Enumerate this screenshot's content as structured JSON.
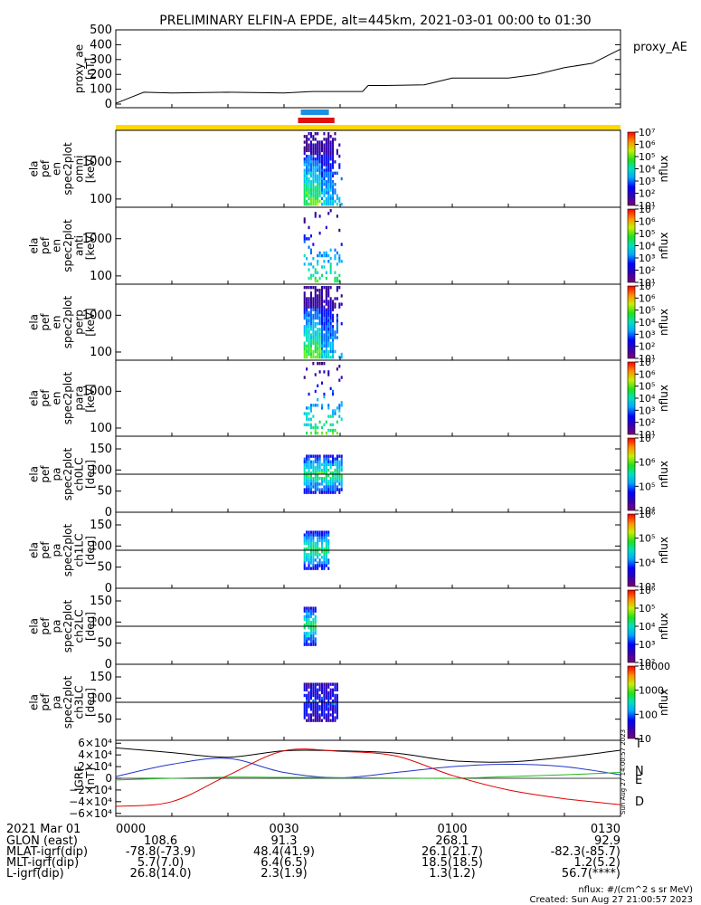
{
  "title": "PRELIMINARY ELFIN-A EPDE, alt=445km, 2021-03-01 00:00 to 01:30",
  "colors": {
    "bar_blue": "#1a8fe3",
    "bar_red": "#e01010",
    "bar_yellow": "#ffd800",
    "grf_total": "#000000",
    "grf_n": "#1f35c9",
    "grf_e": "#1fb81f",
    "grf_d": "#e00000"
  },
  "chart_data": [
    {
      "type": "line",
      "id": "proxy_ae",
      "ylabel": [
        "proxy_ae",
        "[nT]"
      ],
      "ylim": [
        0,
        500
      ],
      "yticks": [
        "0",
        "100",
        "200",
        "300",
        "400",
        "500"
      ],
      "legend": "proxy_AE",
      "x_minutes": [
        0,
        3,
        5,
        10,
        20,
        30,
        35,
        40,
        44,
        45,
        48,
        55,
        60,
        65,
        70,
        75,
        80,
        85,
        90
      ],
      "values": [
        5,
        50,
        80,
        75,
        80,
        75,
        85,
        85,
        85,
        125,
        125,
        130,
        175,
        175,
        175,
        200,
        245,
        275,
        370
      ]
    },
    {
      "type": "heatmap",
      "id": "omni",
      "ylabel": [
        "ela",
        "pef",
        "en",
        "spec2plot",
        "omni",
        "[keV]"
      ],
      "ylim": [
        60,
        7000
      ],
      "yscale": "log",
      "yticks": [
        "100",
        "1000"
      ],
      "colorbar": {
        "label": "nflux",
        "ticks": [
          "10¹",
          "10²",
          "10³",
          "10⁴",
          "10⁵",
          "10⁶",
          "10⁷"
        ]
      }
    },
    {
      "type": "heatmap",
      "id": "anti",
      "ylabel": [
        "ela",
        "pef",
        "en",
        "spec2plot",
        "anti",
        "[keV]"
      ],
      "ylim": [
        60,
        7000
      ],
      "yscale": "log",
      "yticks": [
        "100",
        "1000"
      ],
      "colorbar": {
        "label": "nflux",
        "ticks": [
          "10¹",
          "10²",
          "10³",
          "10⁴",
          "10⁵",
          "10⁶",
          "10⁷"
        ]
      }
    },
    {
      "type": "heatmap",
      "id": "perp",
      "ylabel": [
        "ela",
        "pef",
        "en",
        "spec2plot",
        "perp",
        "[keV]"
      ],
      "ylim": [
        60,
        7000
      ],
      "yscale": "log",
      "yticks": [
        "100",
        "1000"
      ],
      "colorbar": {
        "label": "nflux",
        "ticks": [
          "10¹",
          "10²",
          "10³",
          "10⁴",
          "10⁵",
          "10⁶",
          "10⁷"
        ]
      }
    },
    {
      "type": "heatmap",
      "id": "para",
      "ylabel": [
        "ela",
        "pef",
        "en",
        "spec2plot",
        "para",
        "[keV]"
      ],
      "ylim": [
        60,
        7000
      ],
      "yscale": "log",
      "yticks": [
        "100",
        "1000"
      ],
      "colorbar": {
        "label": "nflux",
        "ticks": [
          "10¹",
          "10²",
          "10³",
          "10⁴",
          "10⁵",
          "10⁶",
          "10⁷"
        ]
      }
    },
    {
      "type": "heatmap",
      "id": "ch0LC",
      "ylabel": [
        "ela",
        "pef",
        "pa",
        "spec2plot",
        "ch0LC",
        "[deg]"
      ],
      "ylim": [
        0,
        180
      ],
      "yticks": [
        "0",
        "50",
        "100",
        "150"
      ],
      "refline": 90,
      "colorbar": {
        "label": "nflux",
        "ticks": [
          "10⁴",
          "10⁵",
          "10⁶",
          "10⁷"
        ]
      }
    },
    {
      "type": "heatmap",
      "id": "ch1LC",
      "ylabel": [
        "ela",
        "pef",
        "pa",
        "spec2plot",
        "ch1LC",
        "[deg]"
      ],
      "ylim": [
        0,
        180
      ],
      "yticks": [
        "0",
        "50",
        "100",
        "150"
      ],
      "refline": 90,
      "colorbar": {
        "label": "nflux",
        "ticks": [
          "10³",
          "10⁴",
          "10⁵",
          "10⁶"
        ]
      }
    },
    {
      "type": "heatmap",
      "id": "ch2LC",
      "ylabel": [
        "ela",
        "pef",
        "pa",
        "spec2plot",
        "ch2LC",
        "[deg]"
      ],
      "ylim": [
        0,
        180
      ],
      "yticks": [
        "0",
        "50",
        "100",
        "150"
      ],
      "refline": 90,
      "colorbar": {
        "label": "nflux",
        "ticks": [
          "10²",
          "10³",
          "10⁴",
          "10⁵",
          "10⁶"
        ]
      }
    },
    {
      "type": "heatmap",
      "id": "ch3LC",
      "ylabel": [
        "ela",
        "pef",
        "pa",
        "spec2plot",
        "ch3LC",
        "[deg]"
      ],
      "ylim": [
        0,
        180
      ],
      "yticks": [
        "50",
        "100",
        "150"
      ],
      "refline": 90,
      "colorbar": {
        "label": "nflux",
        "ticks": [
          "10",
          "100",
          "1000",
          "10000"
        ]
      }
    },
    {
      "type": "line",
      "id": "igrf",
      "ylabel": [
        "IGRF",
        "[nT]"
      ],
      "ylim": [
        -65000,
        65000
      ],
      "yticks": [
        {
          "v": 60000,
          "label": "6×10⁴"
        },
        {
          "v": 40000,
          "label": "4×10⁴"
        },
        {
          "v": 20000,
          "label": "2×10⁴"
        },
        {
          "v": 0,
          "label": "0"
        },
        {
          "v": -20000,
          "label": "−2×10⁴"
        },
        {
          "v": -40000,
          "label": "−4×10⁴"
        },
        {
          "v": -60000,
          "label": "−6×10⁴"
        }
      ],
      "x_minutes": [
        0,
        10,
        20,
        30,
        40,
        50,
        60,
        70,
        80,
        90
      ],
      "series": [
        {
          "name": "T",
          "color": "#000000",
          "values": [
            52000,
            44000,
            36000,
            47000,
            47000,
            43000,
            30000,
            28000,
            36000,
            48000
          ]
        },
        {
          "name": "N",
          "color": "#1f35c9",
          "values": [
            3000,
            24000,
            34000,
            10000,
            1000,
            10000,
            20000,
            24000,
            20000,
            6000
          ]
        },
        {
          "name": "E",
          "color": "#1fb81f",
          "values": [
            -3000,
            0,
            2000,
            1500,
            1000,
            500,
            0,
            3000,
            6000,
            10000
          ]
        },
        {
          "name": "D",
          "color": "#e00000",
          "values": [
            -48000,
            -40000,
            5000,
            47000,
            46000,
            38000,
            5000,
            -20000,
            -35000,
            -45000
          ]
        }
      ]
    }
  ],
  "time_axis": {
    "date": "2021 Mar 01",
    "ticks": [
      "0000",
      "0030",
      "0100",
      "0130"
    ],
    "rows": [
      {
        "label": "GLON (east)",
        "values": [
          "108.6",
          "91.3",
          "268.1",
          "92.9"
        ]
      },
      {
        "label": "MLAT-igrf(dip)",
        "values": [
          "-78.8(-73.9)",
          "48.4(41.9)",
          "26.1(21.7)",
          "-82.3(-85.7)"
        ]
      },
      {
        "label": "MLT-igrf(dip)",
        "values": [
          "5.7(7.0)",
          "6.4(6.5)",
          "18.5(18.5)",
          "1.2(5.2)"
        ]
      },
      {
        "label": "L-igrf(dip)",
        "values": [
          "26.8(14.0)",
          "2.3(1.9)",
          "1.3(1.2)",
          "56.7(****)"
        ]
      }
    ]
  },
  "footer": {
    "units": "nflux: #/(cm^2 s sr MeV)",
    "created": "Created: Sun Aug 27 21:00:57 2023",
    "side_stamp": "Sun Aug 27 14:00:57 2023"
  }
}
